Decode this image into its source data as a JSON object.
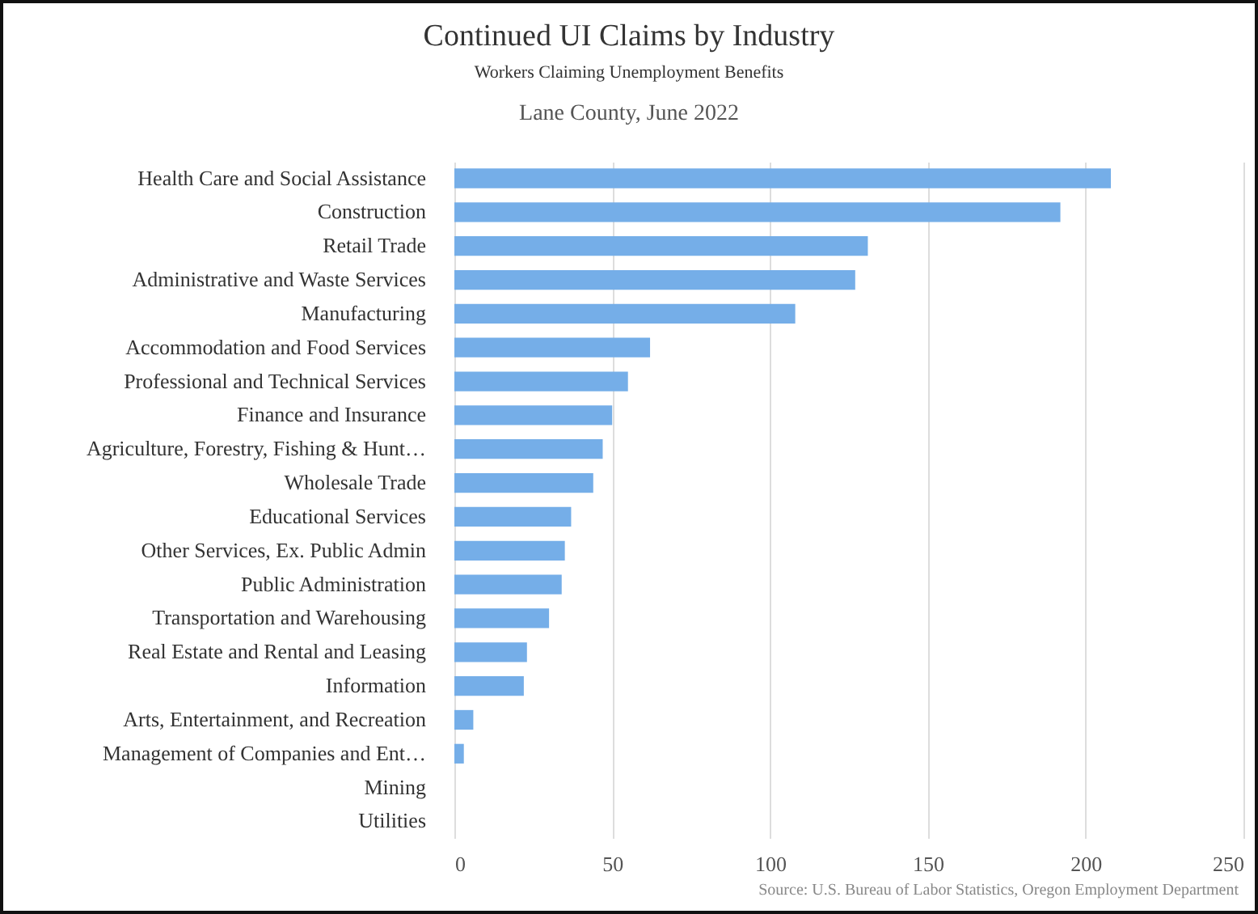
{
  "chart_data": {
    "type": "bar",
    "orientation": "horizontal",
    "title": "Continued UI Claims by Industry",
    "subtitle": "Workers Claiming Unemployment Benefits",
    "annotations": [
      "Lane County, June 2022",
      "Source: U.S. Bureau of Labor Statistics, Oregon Employment Department"
    ],
    "categories": [
      "Health Care and Social Assistance",
      "Construction",
      "Retail Trade",
      "Administrative and Waste Services",
      "Manufacturing",
      "Accommodation and Food Services",
      "Professional and Technical Services",
      "Finance and Insurance",
      "Agriculture, Forestry, Fishing & Hunt…",
      "Wholesale Trade",
      "Educational Services",
      "Other Services, Ex. Public Admin",
      "Public Administration",
      "Transportation and Warehousing",
      "Real Estate and Rental and Leasing",
      "Information",
      "Arts, Entertainment, and Recreation",
      "Management of Companies and Ent…",
      "Mining",
      "Utilities"
    ],
    "values": [
      208,
      192,
      131,
      127,
      108,
      62,
      55,
      50,
      47,
      44,
      37,
      35,
      34,
      30,
      23,
      22,
      6,
      3,
      0,
      0
    ],
    "color": "#75aee8",
    "xlim": [
      0,
      250
    ],
    "xticks": [
      0,
      50,
      100,
      150,
      200,
      250
    ],
    "grid": "x"
  }
}
